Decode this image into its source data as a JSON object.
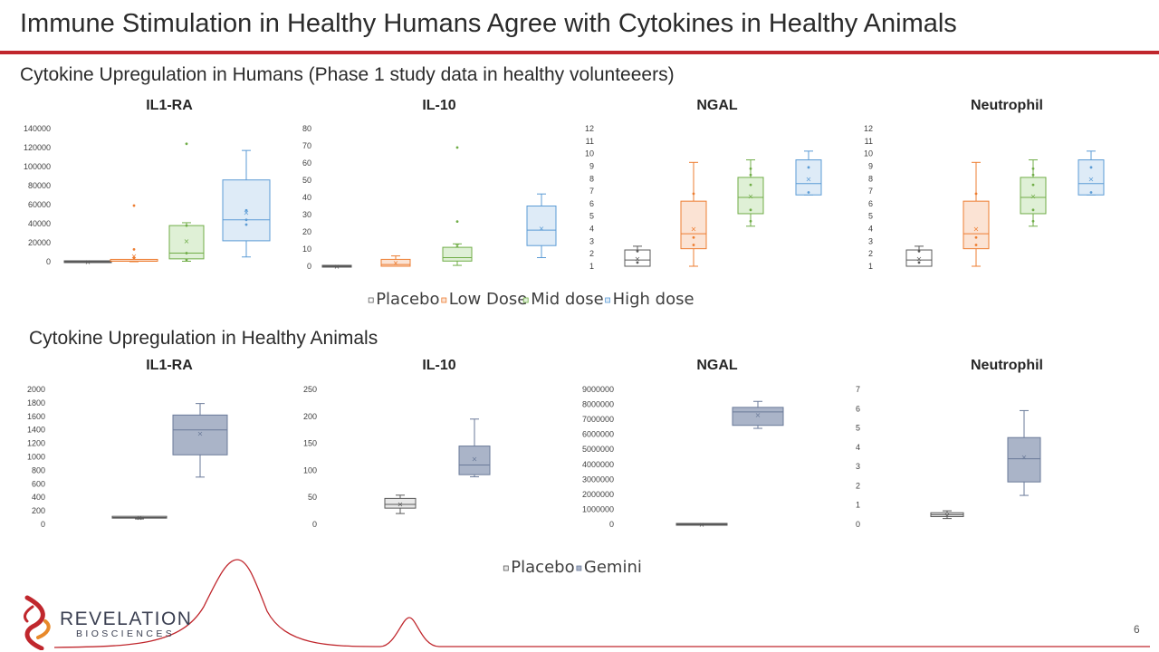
{
  "slide": {
    "title": "Immune Stimulation in Healthy Humans Agree with Cytokines in Healthy Animals",
    "section_humans": "Cytokine Upregulation in Humans (Phase 1 study data in healthy volunteeers)",
    "section_animals": "Cytokine Upregulation in Healthy Animals",
    "page_number": "6"
  },
  "logo": {
    "name": "REVELATION",
    "sub": "BIOSCIENCES"
  },
  "colors": {
    "accent": "#c0272d",
    "placebo": "#595959",
    "low": "#ed7d31",
    "mid": "#70ad47",
    "high": "#5b9bd5",
    "gemini": "#44546a"
  },
  "legend_humans": [
    "Placebo",
    "Low Dose",
    "Mid dose",
    "High dose"
  ],
  "legend_animals": [
    "Placebo",
    "Gemini"
  ],
  "chart_data": [
    {
      "type": "box",
      "group": "humans",
      "title": "IL1-RA",
      "ylim": [
        0,
        140000
      ],
      "ticks": [
        0,
        20000,
        40000,
        60000,
        80000,
        100000,
        120000,
        140000
      ],
      "series": [
        {
          "name": "Placebo",
          "min": 0,
          "q1": 0,
          "median": 0,
          "q3": 0,
          "max": 0,
          "mean": 0,
          "points": [
            0
          ]
        },
        {
          "name": "Low Dose",
          "min": 0,
          "q1": 0,
          "median": 500,
          "q3": 1500,
          "max": 2000,
          "mean": 6000,
          "points": [
            59000,
            13000,
            4000
          ]
        },
        {
          "name": "Mid dose",
          "min": 500,
          "q1": 3000,
          "median": 9000,
          "q3": 38000,
          "max": 41000,
          "mean": 22000,
          "points": [
            124000,
            38000,
            9000,
            2000
          ]
        },
        {
          "name": "High dose",
          "min": 5000,
          "q1": 22000,
          "median": 44000,
          "q3": 86000,
          "max": 117000,
          "mean": 52000,
          "points": [
            54000,
            44000,
            39000
          ]
        }
      ]
    },
    {
      "type": "box",
      "group": "humans",
      "title": "IL-10",
      "ylim": [
        0,
        80
      ],
      "ticks": [
        0,
        10,
        20,
        30,
        40,
        50,
        60,
        70,
        80
      ],
      "series": [
        {
          "name": "Placebo",
          "min": 0,
          "q1": 0,
          "median": 0,
          "q3": 0,
          "max": 0,
          "mean": 0,
          "points": []
        },
        {
          "name": "Low Dose",
          "min": 0,
          "q1": 0,
          "median": 1,
          "q3": 4,
          "max": 6,
          "mean": 2,
          "points": []
        },
        {
          "name": "Mid dose",
          "min": 0.5,
          "q1": 3,
          "median": 5,
          "q3": 11,
          "max": 13,
          "mean": 12,
          "points": [
            69,
            26
          ]
        },
        {
          "name": "High dose",
          "min": 5,
          "q1": 12,
          "median": 21,
          "q3": 35,
          "max": 42,
          "mean": 22,
          "points": []
        }
      ]
    },
    {
      "type": "box",
      "group": "humans",
      "title": "NGAL",
      "ylim": [
        1,
        12
      ],
      "ticks": [
        1,
        2,
        3,
        4,
        5,
        6,
        7,
        8,
        9,
        10,
        11,
        12
      ],
      "series": [
        {
          "name": "Placebo",
          "min": 1,
          "q1": 1,
          "median": 1.5,
          "q3": 2.3,
          "max": 2.6,
          "mean": 1.6,
          "points": [
            2.2,
            1.3
          ]
        },
        {
          "name": "Low Dose",
          "min": 1,
          "q1": 2.4,
          "median": 3.6,
          "q3": 6.2,
          "max": 9.3,
          "mean": 4,
          "points": [
            6.8,
            3.3,
            2.7
          ]
        },
        {
          "name": "Mid dose",
          "min": 4.2,
          "q1": 5.2,
          "median": 6.5,
          "q3": 8.1,
          "max": 9.5,
          "mean": 6.6,
          "points": [
            8.8,
            8.3,
            7.5,
            5.5,
            4.6
          ]
        },
        {
          "name": "High dose",
          "min": 6.7,
          "q1": 6.7,
          "median": 7.6,
          "q3": 9.5,
          "max": 10.2,
          "mean": 8,
          "points": [
            8.9,
            6.9
          ]
        }
      ]
    },
    {
      "type": "box",
      "group": "humans",
      "title": "Neutrophil",
      "ylim": [
        1,
        12
      ],
      "ticks": [
        1,
        2,
        3,
        4,
        5,
        6,
        7,
        8,
        9,
        10,
        11,
        12
      ],
      "series": [
        {
          "name": "Placebo",
          "min": 1,
          "q1": 1,
          "median": 1.5,
          "q3": 2.3,
          "max": 2.6,
          "mean": 1.6,
          "points": [
            2.2,
            1.3
          ]
        },
        {
          "name": "Low Dose",
          "min": 1,
          "q1": 2.4,
          "median": 3.6,
          "q3": 6.2,
          "max": 9.3,
          "mean": 4,
          "points": [
            6.8,
            3.3,
            2.7
          ]
        },
        {
          "name": "Mid dose",
          "min": 4.2,
          "q1": 5.2,
          "median": 6.5,
          "q3": 8.1,
          "max": 9.5,
          "mean": 6.6,
          "points": [
            8.8,
            8.3,
            7.5,
            5.5,
            4.6
          ]
        },
        {
          "name": "High dose",
          "min": 6.7,
          "q1": 6.7,
          "median": 7.6,
          "q3": 9.5,
          "max": 10.2,
          "mean": 8,
          "points": [
            8.9,
            6.9
          ]
        }
      ]
    },
    {
      "type": "box",
      "group": "animals",
      "title": "IL1-RA",
      "ylim": [
        0,
        2000
      ],
      "ticks": [
        0,
        200,
        400,
        600,
        800,
        1000,
        1200,
        1400,
        1600,
        1800,
        2000
      ],
      "series": [
        {
          "name": "Placebo",
          "min": 80,
          "q1": 90,
          "median": 100,
          "q3": 105,
          "max": 115,
          "mean": 100,
          "points": []
        },
        {
          "name": "Gemini",
          "min": 700,
          "q1": 1030,
          "median": 1400,
          "q3": 1620,
          "max": 1790,
          "mean": 1350,
          "points": []
        }
      ]
    },
    {
      "type": "box",
      "group": "animals",
      "title": "IL-10",
      "ylim": [
        0,
        250
      ],
      "ticks": [
        0,
        50,
        100,
        150,
        200,
        250
      ],
      "series": [
        {
          "name": "Placebo",
          "min": 20,
          "q1": 30,
          "median": 37,
          "q3": 48,
          "max": 54,
          "mean": 38,
          "points": []
        },
        {
          "name": "Gemini",
          "min": 88,
          "q1": 92,
          "median": 110,
          "q3": 145,
          "max": 195,
          "mean": 122,
          "points": []
        }
      ]
    },
    {
      "type": "box",
      "group": "animals",
      "title": "NGAL",
      "ylim": [
        0,
        9000000
      ],
      "ticks": [
        0,
        1000000,
        2000000,
        3000000,
        4000000,
        5000000,
        6000000,
        7000000,
        8000000,
        9000000
      ],
      "series": [
        {
          "name": "Placebo",
          "min": 0,
          "q1": 0,
          "median": 0,
          "q3": 0,
          "max": 0,
          "mean": 0,
          "points": []
        },
        {
          "name": "Gemini",
          "min": 6400000,
          "q1": 6600000,
          "median": 7500000,
          "q3": 7800000,
          "max": 8200000,
          "mean": 7300000,
          "points": []
        }
      ]
    },
    {
      "type": "box",
      "group": "animals",
      "title": "Neutrophil",
      "ylim": [
        0,
        7
      ],
      "ticks": [
        0,
        1,
        2,
        3,
        4,
        5,
        6,
        7
      ],
      "series": [
        {
          "name": "Placebo",
          "min": 0.3,
          "q1": 0.4,
          "median": 0.5,
          "q3": 0.6,
          "max": 0.7,
          "mean": 0.5,
          "points": []
        },
        {
          "name": "Gemini",
          "min": 1.5,
          "q1": 2.2,
          "median": 3.4,
          "q3": 4.5,
          "max": 5.9,
          "mean": 3.5,
          "points": []
        }
      ]
    }
  ]
}
